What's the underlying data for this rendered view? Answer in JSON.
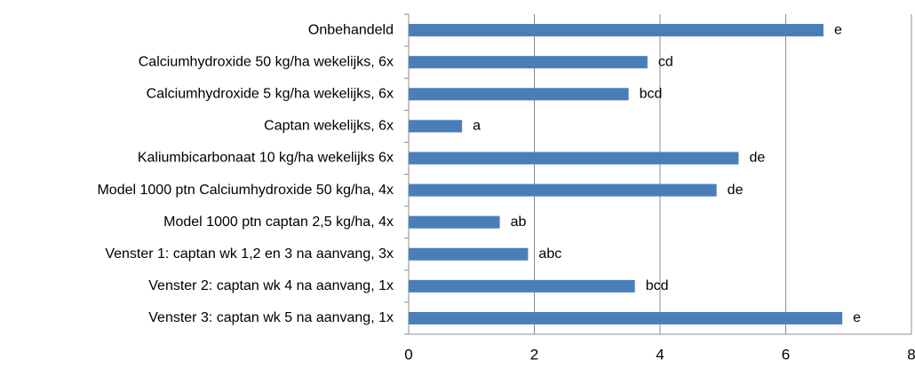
{
  "chart_data": {
    "type": "barh",
    "categories": [
      "Onbehandeld",
      "Calciumhydroxide 50 kg/ha wekelijks, 6x",
      "Calciumhydroxide 5 kg/ha wekelijks, 6x",
      "Captan wekelijks, 6x",
      "Kaliumbicarbonaat 10 kg/ha wekelijks 6x",
      "Model 1000 ptn Calciumhydroxide 50 kg/ha, 4x",
      "Model 1000 ptn captan 2,5 kg/ha, 4x",
      "Venster 1: captan wk 1,2 en 3 na aanvang, 3x",
      "Venster 2: captan wk 4 na aanvang, 1x",
      "Venster 3: captan wk 5 na aanvang, 1x"
    ],
    "values": [
      6.6,
      3.8,
      3.5,
      0.85,
      5.25,
      4.9,
      1.45,
      1.9,
      3.6,
      6.9
    ],
    "annotations": [
      "e",
      "cd",
      "bcd",
      "a",
      "de",
      "de",
      "ab",
      "abc",
      "bcd",
      "e"
    ],
    "color": "#4a7ebb",
    "xlim": [
      0,
      8
    ],
    "xticks": [
      0,
      2,
      4,
      6,
      8
    ],
    "grid": true
  }
}
